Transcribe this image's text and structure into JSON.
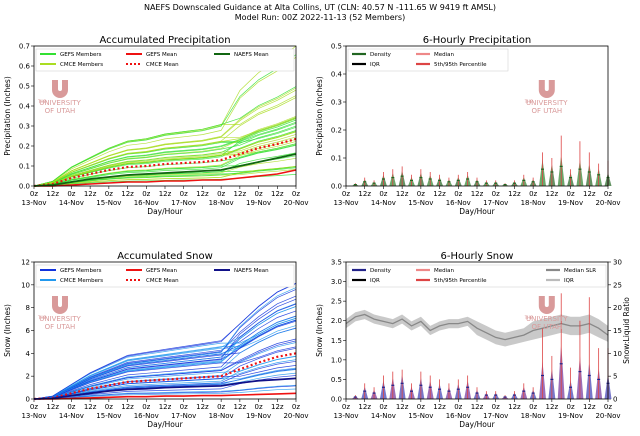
{
  "header": {
    "line1": "NAEFS Downscaled Guidance at Alta Collins, UT (CLN: 40.57 N -111.65 W 9419 ft AMSL)",
    "line2": "Model Run: 00Z 2022-11-13 (52 Members)"
  },
  "logo": {
    "the": "THE",
    "name1": "UNIVERSITY",
    "name2": "OF UTAH"
  },
  "shared": {
    "xlabel": "Day/Hour",
    "hour_ticks": [
      "0z",
      "12z",
      "0z",
      "12z",
      "0z",
      "12z",
      "0z",
      "12z",
      "0z",
      "12z",
      "0z",
      "12z",
      "0z",
      "12z",
      "0z"
    ],
    "day_ticks": [
      "13-Nov",
      "14-Nov",
      "15-Nov",
      "16-Nov",
      "17-Nov",
      "18-Nov",
      "19-Nov",
      "20-Nov"
    ]
  },
  "colors": {
    "gefs_precip": "#33e033",
    "cmce_precip": "#aadd22",
    "gefs_snow": "#1133dd",
    "cmce_snow": "#2299ee",
    "mean_red": "#ee1111",
    "naefs_precip": "#116611",
    "naefs_snow": "#111188",
    "density_precip": "#226622",
    "density_snow": "#222288",
    "median_line": "#ee8888",
    "pct_line": "#dd4444",
    "slr": "#888888",
    "logo": "#d99a9a"
  },
  "chart_data": [
    {
      "id": "acc-precip",
      "type": "line",
      "title": "Accumulated Precipitation",
      "ylabel": "Precipitation (Inches)",
      "ylim": [
        0,
        0.7
      ],
      "yticks": [
        "0.0",
        "0.1",
        "0.2",
        "0.3",
        "0.4",
        "0.5",
        "0.6",
        "0.7"
      ],
      "legend": [
        "GEFS Members",
        "GEFS Mean",
        "NAEFS Mean",
        "CMCE Members",
        "CMCE Mean"
      ],
      "x": [
        0,
        12,
        24,
        36,
        48,
        60,
        72,
        84,
        96,
        108,
        120,
        132,
        144,
        156,
        168
      ],
      "series": [
        {
          "name": "GEFS Mean",
          "values": [
            0,
            0,
            0.005,
            0.01,
            0.015,
            0.02,
            0.02,
            0.025,
            0.025,
            0.03,
            0.03,
            0.04,
            0.05,
            0.06,
            0.08
          ]
        },
        {
          "name": "CMCE Mean",
          "values": [
            0,
            0.01,
            0.04,
            0.06,
            0.08,
            0.095,
            0.1,
            0.11,
            0.115,
            0.12,
            0.13,
            0.16,
            0.19,
            0.21,
            0.235
          ]
        },
        {
          "name": "NAEFS Mean",
          "values": [
            0,
            0.005,
            0.02,
            0.035,
            0.045,
            0.055,
            0.06,
            0.065,
            0.07,
            0.075,
            0.08,
            0.1,
            0.12,
            0.14,
            0.16
          ]
        }
      ]
    },
    {
      "id": "six-precip",
      "type": "bar",
      "title": "6-Hourly Precipitation",
      "ylabel": "Precipitation (Inches)",
      "ylim": [
        0,
        0.5
      ],
      "yticks": [
        "0.0",
        "0.1",
        "0.2",
        "0.3",
        "0.4",
        "0.5"
      ],
      "legend": [
        "Density",
        "IQR",
        "Median",
        "5th/95th Percentile"
      ],
      "x": [
        6,
        12,
        18,
        24,
        30,
        36,
        42,
        48,
        54,
        60,
        66,
        72,
        78,
        84,
        90,
        96,
        102,
        108,
        114,
        120,
        126,
        132,
        138,
        144,
        150,
        156,
        162,
        168
      ],
      "values": [
        0.005,
        0.015,
        0.01,
        0.025,
        0.03,
        0.035,
        0.02,
        0.03,
        0.025,
        0.02,
        0.015,
        0.02,
        0.025,
        0.015,
        0.01,
        0.01,
        0.005,
        0.01,
        0.02,
        0.015,
        0.06,
        0.05,
        0.07,
        0.03,
        0.06,
        0.05,
        0.04,
        0.03
      ],
      "p95": [
        0.01,
        0.03,
        0.02,
        0.05,
        0.06,
        0.07,
        0.04,
        0.06,
        0.05,
        0.04,
        0.03,
        0.04,
        0.05,
        0.03,
        0.02,
        0.02,
        0.01,
        0.02,
        0.04,
        0.03,
        0.12,
        0.1,
        0.18,
        0.06,
        0.16,
        0.12,
        0.08,
        0.09
      ]
    },
    {
      "id": "acc-snow",
      "type": "line",
      "title": "Accumulated Snow",
      "ylabel": "Snow (Inches)",
      "ylim": [
        0,
        12
      ],
      "yticks": [
        "0",
        "2",
        "4",
        "6",
        "8",
        "10",
        "12"
      ],
      "legend": [
        "GEFS Members",
        "GEFS Mean",
        "NAEFS Mean",
        "CMCE Members",
        "CMCE Mean"
      ],
      "x": [
        0,
        12,
        24,
        36,
        48,
        60,
        72,
        84,
        96,
        108,
        120,
        132,
        144,
        156,
        168
      ],
      "series": [
        {
          "name": "GEFS Mean",
          "values": [
            0,
            0,
            0.05,
            0.1,
            0.15,
            0.2,
            0.2,
            0.25,
            0.25,
            0.3,
            0.3,
            0.35,
            0.4,
            0.45,
            0.5
          ]
        },
        {
          "name": "CMCE Mean",
          "values": [
            0,
            0.1,
            0.5,
            0.9,
            1.2,
            1.5,
            1.6,
            1.7,
            1.8,
            1.9,
            2.0,
            2.6,
            3.2,
            3.7,
            4.0
          ]
        },
        {
          "name": "NAEFS Mean",
          "values": [
            0,
            0.05,
            0.3,
            0.5,
            0.7,
            0.85,
            0.9,
            1.0,
            1.05,
            1.1,
            1.15,
            1.4,
            1.6,
            1.7,
            1.8
          ]
        }
      ]
    },
    {
      "id": "six-snow",
      "type": "bar",
      "title": "6-Hourly Snow",
      "ylabel": "Snow (Inches)",
      "ylim": [
        0,
        3.5
      ],
      "yticks": [
        "0.0",
        "0.5",
        "1.0",
        "1.5",
        "2.0",
        "2.5",
        "3.0",
        "3.5"
      ],
      "y2label": "Snow:Liquid Ratio",
      "y2lim": [
        0,
        30
      ],
      "y2ticks": [
        "0",
        "5",
        "10",
        "15",
        "20",
        "25",
        "30"
      ],
      "legend": [
        "Density",
        "IQR",
        "Median",
        "5th/95th Percentile",
        "Median SLR",
        "IQR"
      ],
      "x": [
        6,
        12,
        18,
        24,
        30,
        36,
        42,
        48,
        54,
        60,
        66,
        72,
        78,
        84,
        90,
        96,
        102,
        108,
        114,
        120,
        126,
        132,
        138,
        144,
        150,
        156,
        162,
        168
      ],
      "values": [
        0.05,
        0.2,
        0.15,
        0.3,
        0.35,
        0.4,
        0.2,
        0.35,
        0.3,
        0.25,
        0.2,
        0.25,
        0.3,
        0.15,
        0.1,
        0.1,
        0.05,
        0.1,
        0.2,
        0.15,
        0.6,
        0.5,
        0.9,
        0.3,
        0.7,
        0.6,
        0.5,
        0.4
      ],
      "p95": [
        0.1,
        0.4,
        0.3,
        0.6,
        0.7,
        0.75,
        0.4,
        0.7,
        0.6,
        0.5,
        0.4,
        0.5,
        0.6,
        0.3,
        0.2,
        0.2,
        0.1,
        0.2,
        0.4,
        0.3,
        1.8,
        1.1,
        2.7,
        0.8,
        2.0,
        2.6,
        1.3,
        1.3
      ],
      "slr_x": [
        0,
        6,
        12,
        18,
        24,
        30,
        36,
        42,
        48,
        54,
        60,
        66,
        72,
        78,
        84,
        90,
        96,
        102,
        108,
        114,
        120,
        126,
        132,
        138,
        144,
        150,
        156,
        162,
        168
      ],
      "slr": [
        16.5,
        18,
        18.5,
        17.5,
        17,
        16.5,
        17.5,
        16,
        17,
        15,
        16,
        16.5,
        16.5,
        17,
        15.5,
        14.5,
        13.5,
        13,
        13.5,
        14,
        15,
        15.5,
        16,
        16.5,
        16,
        16,
        16.5,
        15.5,
        14
      ],
      "slr_lo": [
        15.5,
        17,
        17.5,
        16.5,
        16,
        15.5,
        16.5,
        15,
        16,
        14,
        15,
        15.5,
        15.5,
        16,
        14,
        13,
        12,
        11.5,
        12,
        12.5,
        13,
        13.5,
        14,
        14.5,
        14,
        14,
        14.5,
        13.5,
        12.5
      ],
      "slr_hi": [
        17.5,
        19,
        19.5,
        18.5,
        18,
        17.5,
        18.5,
        17,
        18,
        16,
        17,
        17.5,
        17.5,
        18,
        17,
        16,
        15,
        14.5,
        15,
        15.5,
        17,
        17.5,
        18,
        18.5,
        18,
        18,
        18.5,
        17.5,
        16
      ]
    }
  ]
}
